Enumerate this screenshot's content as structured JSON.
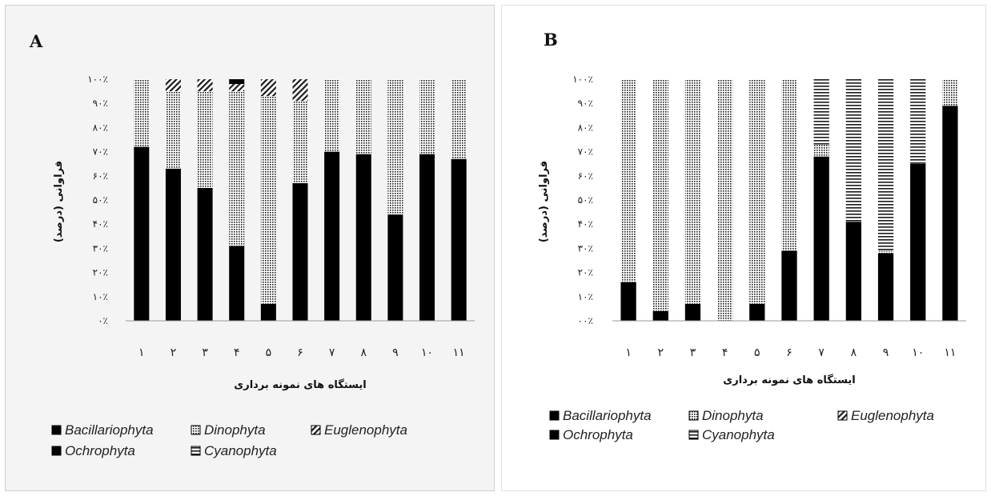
{
  "chart_data": [
    {
      "panel": "A",
      "type": "bar",
      "stacked": true,
      "ylabel": "فراوانی (درصد)",
      "xlabel": "ایستگاه های نمونه برداری",
      "yticks": [
        "۰٪",
        "۱۰٪",
        "۲۰٪",
        "۳۰٪",
        "۴۰٪",
        "۵۰٪",
        "۶۰٪",
        "۷۰٪",
        "۸۰٪",
        "۹۰٪",
        "۱۰۰٪"
      ],
      "ylim": [
        0,
        100
      ],
      "categories": [
        "۱",
        "۲",
        "۳",
        "۴",
        "۵",
        "۶",
        "۷",
        "۸",
        "۹",
        "۱۰",
        "۱۱"
      ],
      "legend_position": "bottom",
      "series": [
        {
          "name": "Bacillariophyta",
          "pattern": "solid",
          "values": [
            72,
            63,
            55,
            31,
            7,
            57,
            70,
            69,
            44,
            69,
            67
          ]
        },
        {
          "name": "Dinophyta",
          "pattern": "dots",
          "values": [
            28,
            32,
            40,
            64,
            86,
            34,
            30,
            31,
            56,
            31,
            33
          ]
        },
        {
          "name": "Euglenophyta",
          "pattern": "hatch",
          "values": [
            0,
            5,
            5,
            3,
            7,
            9,
            0,
            0,
            0,
            0,
            0
          ]
        },
        {
          "name": "Ochrophyta",
          "pattern": "solid",
          "values": [
            0,
            0,
            0,
            2,
            0,
            0,
            0,
            0,
            0,
            0,
            0
          ]
        },
        {
          "name": "Cyanophyta",
          "pattern": "hstripes",
          "values": [
            0,
            0,
            0,
            0,
            0,
            0,
            0,
            0,
            0,
            0,
            0
          ]
        }
      ]
    },
    {
      "panel": "B",
      "type": "bar",
      "stacked": true,
      "ylabel": "فراوانی (درصد)",
      "xlabel": "ایستگاه های نمونه برداری",
      "yticks": [
        "۰۰٪",
        "۱۰٪",
        "۲۰٪",
        "۳۰٪",
        "۴۰٪",
        "۵۰٪",
        "۶۰٪",
        "۷۰٪",
        "۸۰٪",
        "۹۰٪",
        "۱۰۰٪"
      ],
      "ylim": [
        0,
        100
      ],
      "categories": [
        "۱",
        "۲",
        "۳",
        "۴",
        "۵",
        "۶",
        "۷",
        "۸",
        "۹",
        "۱۰",
        "۱۱"
      ],
      "legend_position": "bottom",
      "series": [
        {
          "name": "Bacillariophyta",
          "pattern": "solid",
          "values": [
            16,
            4,
            7,
            0,
            7,
            29,
            68,
            41,
            28,
            65,
            89
          ]
        },
        {
          "name": "Dinophyta",
          "pattern": "dots",
          "values": [
            84,
            96,
            93,
            100,
            93,
            71,
            5,
            0,
            1,
            0,
            11
          ]
        },
        {
          "name": "Euglenophyta",
          "pattern": "hatch",
          "values": [
            0,
            0,
            0,
            0,
            0,
            0,
            0,
            0,
            0,
            0,
            0
          ]
        },
        {
          "name": "Ochrophyta",
          "pattern": "solid",
          "values": [
            0,
            0,
            0,
            0,
            0,
            0,
            0,
            0,
            0,
            0,
            0
          ]
        },
        {
          "name": "Cyanophyta",
          "pattern": "hstripes",
          "values": [
            0,
            0,
            0,
            0,
            0,
            0,
            27,
            59,
            71,
            35,
            0
          ]
        }
      ]
    }
  ]
}
